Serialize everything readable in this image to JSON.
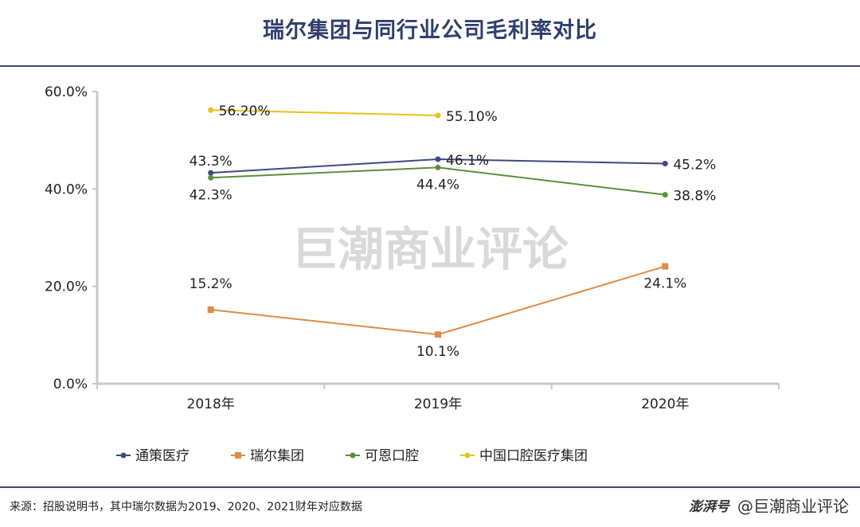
{
  "title": "瑞尔集团与同行业公司毛利率对比",
  "watermark": "巨潮商业评论",
  "source": "来源：招股说明书，其中瑞尔数据为2019、2020、2021财年对应数据",
  "credit": {
    "logo": "澎湃号",
    "text": "@巨潮商业评论"
  },
  "chart_data": {
    "type": "line",
    "title": "瑞尔集团与同行业公司毛利率对比",
    "categories": [
      "2018年",
      "2019年",
      "2020年"
    ],
    "ylim": [
      0,
      60
    ],
    "yticks": [
      "0.0%",
      "20.0%",
      "40.0%",
      "60.0%"
    ],
    "ytick_values": [
      0,
      20,
      40,
      60
    ],
    "grid": false,
    "legend_position": "bottom",
    "series": [
      {
        "name": "通策医疗",
        "color": "#3e4a80",
        "marker": "circle",
        "values": [
          43.3,
          46.1,
          45.2
        ],
        "labels": [
          "43.3%",
          "46.1%",
          "45.2%"
        ],
        "label_pos": [
          "above",
          "right",
          "right"
        ]
      },
      {
        "name": "瑞尔集团",
        "color": "#e08a48",
        "marker": "square",
        "values": [
          15.2,
          10.1,
          24.1
        ],
        "labels": [
          "15.2%",
          "10.1%",
          "24.1%"
        ],
        "label_pos": [
          "above-far",
          "below",
          "below"
        ]
      },
      {
        "name": "可恩口腔",
        "color": "#5a8f3a",
        "marker": "circle",
        "values": [
          42.3,
          44.4,
          38.8
        ],
        "labels": [
          "42.3%",
          "44.4%",
          "38.8%"
        ],
        "label_pos": [
          "below",
          "below",
          "right"
        ]
      },
      {
        "name": "中国口腔医疗集团",
        "color": "#e8c21c",
        "marker": "circle",
        "values": [
          56.2,
          55.1,
          null
        ],
        "labels": [
          "56.20%",
          "55.10%",
          null
        ],
        "label_pos": [
          "right",
          "right",
          null
        ]
      }
    ]
  }
}
